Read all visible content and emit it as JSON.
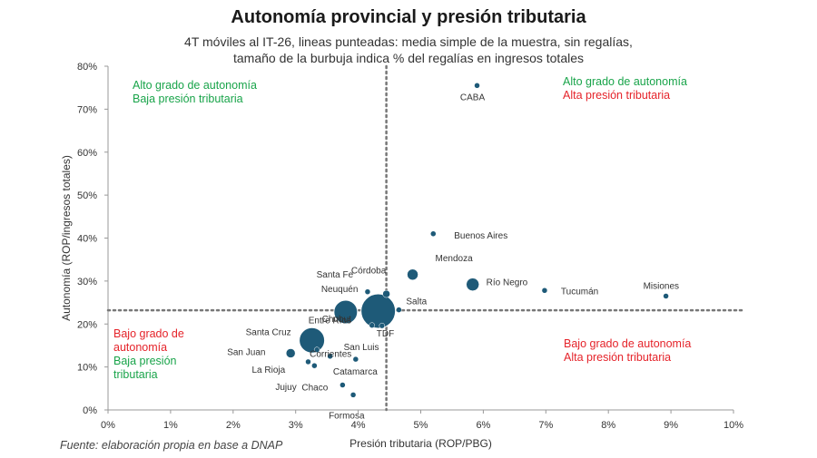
{
  "title": "Autonomía provincial y presión tributaria",
  "subtitle_line1": "4T móviles al IT-26, lineas punteadas: media simple de la muestra, sin regalías,",
  "subtitle_line2": "tamaño de la burbuja indica % del regalías en ingresos totales",
  "source": "Fuente: elaboración propia en base a DNAP",
  "colors": {
    "bubble": "#1e5a78",
    "green": "#19a44a",
    "red": "#e5232a",
    "axis": "#999999",
    "meanline": "#777777"
  },
  "chart_data": {
    "type": "scatter",
    "xlabel": "Presión tributaria (ROP/PBG)",
    "ylabel": "Autonomía (ROP/ingresos totales)",
    "xlim": [
      0,
      10
    ],
    "ylim": [
      0,
      80
    ],
    "x_ticks": [
      "0%",
      "1%",
      "2%",
      "3%",
      "4%",
      "5%",
      "6%",
      "7%",
      "8%",
      "9%",
      "10%"
    ],
    "y_ticks": [
      "0%",
      "10%",
      "20%",
      "30%",
      "40%",
      "50%",
      "60%",
      "70%",
      "80%"
    ],
    "mean_x": 4.45,
    "mean_y": 23.2,
    "points": [
      {
        "name": "CABA",
        "x": 5.9,
        "y": 75.5,
        "r": 3,
        "lx": -5,
        "ly": 16,
        "anchor": "middle"
      },
      {
        "name": "Buenos Aires",
        "x": 5.2,
        "y": 41,
        "r": 3,
        "lx": 23,
        "ly": 5,
        "anchor": "start"
      },
      {
        "name": "Mendoza",
        "x": 4.87,
        "y": 31.5,
        "r": 6,
        "lx": 25,
        "ly": -15,
        "anchor": "start"
      },
      {
        "name": "Río Negro",
        "x": 5.83,
        "y": 29.2,
        "r": 7,
        "lx": 15,
        "ly": 1,
        "anchor": "start"
      },
      {
        "name": "Tucumán",
        "x": 6.98,
        "y": 27.8,
        "r": 3,
        "lx": 18,
        "ly": 4,
        "anchor": "start"
      },
      {
        "name": "Misiones",
        "x": 8.92,
        "y": 26.5,
        "r": 3,
        "lx": -25,
        "ly": -8,
        "anchor": "start"
      },
      {
        "name": "Córdoba",
        "x": 4.15,
        "y": 27.5,
        "r": 3,
        "lx": -18,
        "ly": -20,
        "anchor": "start"
      },
      {
        "name": "Santa Fe",
        "x": 4.45,
        "y": 27,
        "r": 4,
        "lx": -77,
        "ly": -18,
        "anchor": "start"
      },
      {
        "name": "Neuquén",
        "x": 3.8,
        "y": 22.8,
        "r": 13,
        "lx": -27,
        "ly": -22,
        "anchor": "start"
      },
      {
        "name": "Salta",
        "x": 4.65,
        "y": 23.3,
        "r": 3,
        "lx": 8,
        "ly": -6,
        "anchor": "start"
      },
      {
        "name": "Chubut",
        "x": 4.32,
        "y": 23,
        "r": 19,
        "lx": -62,
        "ly": 12,
        "anchor": "start"
      },
      {
        "name": "Entre Ríos",
        "x": 4.22,
        "y": 19.7,
        "r": 3,
        "lx": -70,
        "ly": -2,
        "anchor": "start"
      },
      {
        "name": "TDF",
        "x": 4.38,
        "y": 19.6,
        "r": 3,
        "lx": -6,
        "ly": 12,
        "anchor": "start"
      },
      {
        "name": "Santa Cruz",
        "x": 3.26,
        "y": 16.2,
        "r": 14,
        "lx": -73,
        "ly": -6,
        "anchor": "start"
      },
      {
        "name": "Corrientes",
        "x": 3.34,
        "y": 14,
        "r": 3,
        "lx": -8,
        "ly": 8,
        "anchor": "start"
      },
      {
        "name": "San Juan",
        "x": 2.92,
        "y": 13.2,
        "r": 5,
        "lx": -70,
        "ly": 2,
        "anchor": "start"
      },
      {
        "name": "San Luis",
        "x": 3.55,
        "y": 12.5,
        "r": 3,
        "lx": 15,
        "ly": -7,
        "anchor": "start"
      },
      {
        "name": "Catamarca",
        "x": 3.96,
        "y": 11.8,
        "r": 3,
        "lx": -25,
        "ly": 17,
        "anchor": "start"
      },
      {
        "name": "La Rioja",
        "x": 3.2,
        "y": 11.2,
        "r": 3,
        "lx": -62,
        "ly": 12,
        "anchor": "start"
      },
      {
        "name": "Jujuy",
        "x": 3.3,
        "y": 10.3,
        "r": 3,
        "lx": -43,
        "ly": 27,
        "anchor": "start"
      },
      {
        "name": "Chaco",
        "x": 3.75,
        "y": 5.8,
        "r": 3,
        "lx": -45,
        "ly": 6,
        "anchor": "start"
      },
      {
        "name": "Formosa",
        "x": 3.92,
        "y": 3.5,
        "r": 3,
        "lx": -27,
        "ly": 26,
        "anchor": "start"
      }
    ],
    "quadrants": {
      "top_left": [
        {
          "text": "Alto grado de autonomía",
          "color": "green"
        },
        {
          "text": "Baja presión tributaria",
          "color": "green"
        }
      ],
      "top_right": [
        {
          "text": "Alto grado de autonomía",
          "color": "green"
        },
        {
          "text": "Alta presión tributaria",
          "color": "red"
        }
      ],
      "bottom_left": [
        {
          "text": "Bajo grado de",
          "color": "red"
        },
        {
          "text": "autonomía",
          "color": "red"
        },
        {
          "text": "Baja presión",
          "color": "green"
        },
        {
          "text": "tributaria",
          "color": "green"
        }
      ],
      "bottom_right": [
        {
          "text": "Bajo grado de autonomía",
          "color": "red"
        },
        {
          "text": "Alta presión tributaria",
          "color": "red"
        }
      ]
    }
  }
}
